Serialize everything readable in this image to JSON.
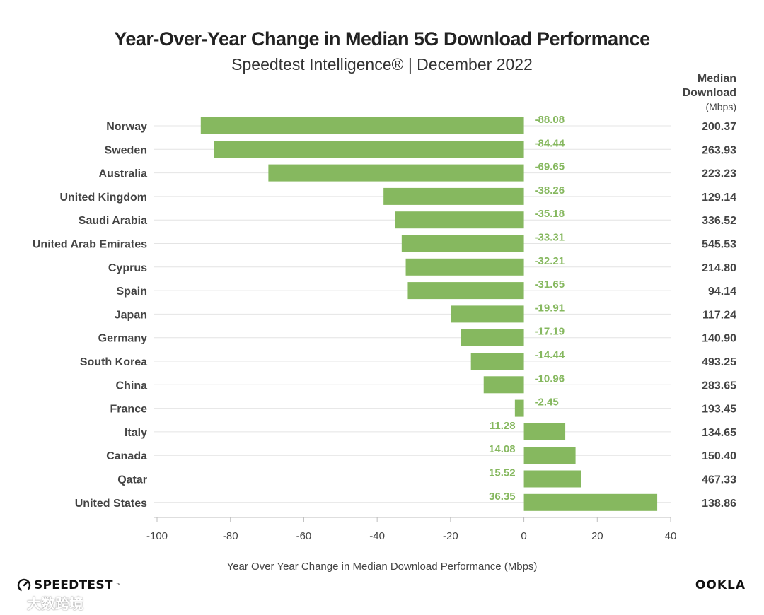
{
  "header": {
    "title": "Year-Over-Year Change in Median 5G Download Performance",
    "subtitle": "Speedtest Intelligence® | December 2022"
  },
  "median_column": {
    "header_lines": [
      "Median",
      "Download",
      "(Mbps)"
    ]
  },
  "chart_data": {
    "type": "bar",
    "orientation": "horizontal",
    "categories": [
      "Norway",
      "Sweden",
      "Australia",
      "United Kingdom",
      "Saudi Arabia",
      "United Arab Emirates",
      "Cyprus",
      "Spain",
      "Japan",
      "Germany",
      "South Korea",
      "China",
      "France",
      "Italy",
      "Canada",
      "Qatar",
      "United States"
    ],
    "values": [
      -88.08,
      -84.44,
      -69.65,
      -38.26,
      -35.18,
      -33.31,
      -32.21,
      -31.65,
      -19.91,
      -17.19,
      -14.44,
      -10.96,
      -2.45,
      11.28,
      14.08,
      15.52,
      36.35
    ],
    "value_labels": [
      "-88.08",
      "-84.44",
      "-69.65",
      "-38.26",
      "-35.18",
      "-33.31",
      "-32.21",
      "-31.65",
      "-19.91",
      "-17.19",
      "-14.44",
      "-10.96",
      "-2.45",
      "11.28",
      "14.08",
      "15.52",
      "36.35"
    ],
    "median_download": [
      "200.37",
      "263.93",
      "223.23",
      "129.14",
      "336.52",
      "545.53",
      "214.80",
      "94.14",
      "117.24",
      "140.90",
      "493.25",
      "283.65",
      "193.45",
      "134.65",
      "150.40",
      "467.33",
      "138.86"
    ],
    "xlim": [
      -100,
      40
    ],
    "xticks": [
      -100,
      -80,
      -60,
      -40,
      -20,
      0,
      20,
      40
    ],
    "xlabel": "Year Over Year Change in Median Download Performance (Mbps)",
    "ylabel": "",
    "grid": "horizontal lines",
    "legend": "none",
    "bar_color": "#86b85f",
    "label_color": "#86b85f"
  },
  "footer": {
    "brand_left": "SPEEDTEST",
    "brand_left_mark": "™",
    "brand_right": "OOKLA",
    "watermark": "大数跨境"
  }
}
